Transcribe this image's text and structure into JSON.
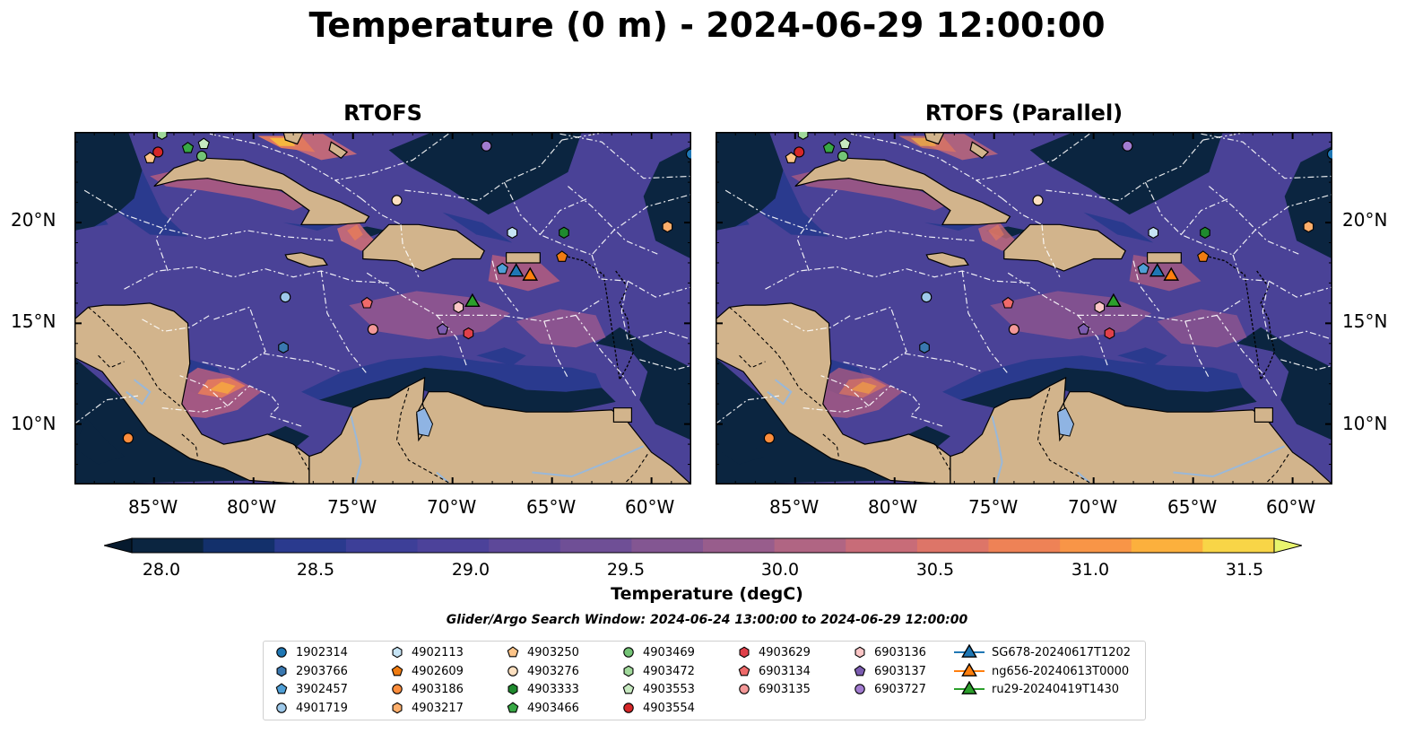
{
  "title": "Temperature (0 m) - 2024-06-29 12:00:00",
  "panels": [
    {
      "id": "rtofs",
      "title": "RTOFS"
    },
    {
      "id": "parallel",
      "title": "RTOFS (Parallel)"
    }
  ],
  "lon_ticks": [
    "85°W",
    "80°W",
    "75°W",
    "70°W",
    "65°W",
    "60°W"
  ],
  "lat_ticks": [
    "20°N",
    "15°N",
    "10°N"
  ],
  "map_extent": {
    "lon_min": -89,
    "lon_max": -58,
    "lat_min": 7,
    "lat_max": 24.5
  },
  "colorbar": {
    "label": "Temperature (degC)",
    "ticks": [
      "28.0",
      "28.5",
      "29.0",
      "29.5",
      "30.0",
      "30.5",
      "31.0",
      "31.5"
    ],
    "vmin": 28.0,
    "vmax": 31.5,
    "step": 0.25,
    "colors": [
      "#0b2540",
      "#13306b",
      "#2a3a8e",
      "#3d3f98",
      "#4c429a",
      "#5d4899",
      "#6f4f96",
      "#835692",
      "#985d8c",
      "#b06583",
      "#c86c78",
      "#dd7568",
      "#ee8256",
      "#f89547",
      "#fcb03d",
      "#f8d547"
    ],
    "under_color": "#061a2e",
    "over_color": "#e8f56e"
  },
  "search_window": "Glider/Argo Search Window: 2024-06-24 13:00:00 to 2024-06-29 12:00:00",
  "legend": [
    {
      "label": "1902314",
      "marker": "circle",
      "color": "#1f77b4"
    },
    {
      "label": "2903766",
      "marker": "hexagon",
      "color": "#3a78b0"
    },
    {
      "label": "3902457",
      "marker": "pentagon",
      "color": "#4f9fd6"
    },
    {
      "label": "4901719",
      "marker": "circle",
      "color": "#9ec9ea"
    },
    {
      "label": "4902113",
      "marker": "hexagon",
      "color": "#c6e4f5"
    },
    {
      "label": "4902609",
      "marker": "pentagon",
      "color": "#f07c12"
    },
    {
      "label": "4903186",
      "marker": "circle",
      "color": "#fd8d3c"
    },
    {
      "label": "4903217",
      "marker": "hexagon",
      "color": "#fdae6b"
    },
    {
      "label": "4903250",
      "marker": "pentagon",
      "color": "#fdc488"
    },
    {
      "label": "4903276",
      "marker": "circle",
      "color": "#fde0c0"
    },
    {
      "label": "4903333",
      "marker": "hexagon",
      "color": "#1f8a2e"
    },
    {
      "label": "4903466",
      "marker": "pentagon",
      "color": "#38a845"
    },
    {
      "label": "4903469",
      "marker": "circle",
      "color": "#74c476"
    },
    {
      "label": "4903472",
      "marker": "hexagon",
      "color": "#a1d99b"
    },
    {
      "label": "4903553",
      "marker": "pentagon",
      "color": "#c7e9c0"
    },
    {
      "label": "4903554",
      "marker": "circle",
      "color": "#d62728"
    },
    {
      "label": "4903629",
      "marker": "hexagon",
      "color": "#e0404a"
    },
    {
      "label": "6903134",
      "marker": "pentagon",
      "color": "#ef6a6a"
    },
    {
      "label": "6903135",
      "marker": "circle",
      "color": "#f49898"
    },
    {
      "label": "6903136",
      "marker": "hexagon",
      "color": "#fcc6c6"
    },
    {
      "label": "6903137",
      "marker": "pentagon",
      "color": "#7b5cb0"
    },
    {
      "label": "6903727",
      "marker": "circle",
      "color": "#a27cd0"
    },
    {
      "label": "SG678-20240617T1202",
      "marker": "triangle",
      "color": "#1f77b4"
    },
    {
      "label": "ng656-20240613T0000",
      "marker": "triangle",
      "color": "#ff7f0e"
    },
    {
      "label": "ru29-20240419T1430",
      "marker": "triangle",
      "color": "#2ca02c"
    }
  ],
  "observations": [
    {
      "id": "1902314",
      "lon": -58.0,
      "lat": 23.4
    },
    {
      "id": "2903766",
      "lon": -78.5,
      "lat": 13.8
    },
    {
      "id": "3902457",
      "lon": -67.5,
      "lat": 17.7
    },
    {
      "id": "4901719",
      "lon": -78.4,
      "lat": 16.3
    },
    {
      "id": "4902113",
      "lon": -67.0,
      "lat": 19.5
    },
    {
      "id": "4902609",
      "lon": -64.5,
      "lat": 18.3
    },
    {
      "id": "4903186",
      "lon": -86.3,
      "lat": 9.3
    },
    {
      "id": "4903217",
      "lon": -59.2,
      "lat": 19.8
    },
    {
      "id": "4903250",
      "lon": -85.2,
      "lat": 23.2
    },
    {
      "id": "4903276",
      "lon": -72.8,
      "lat": 21.1
    },
    {
      "id": "4903333",
      "lon": -64.4,
      "lat": 19.5
    },
    {
      "id": "4903466",
      "lon": -83.3,
      "lat": 23.7
    },
    {
      "id": "4903469",
      "lon": -82.6,
      "lat": 23.3
    },
    {
      "id": "4903472",
      "lon": -84.6,
      "lat": 24.4
    },
    {
      "id": "4903553",
      "lon": -82.5,
      "lat": 23.9
    },
    {
      "id": "4903554",
      "lon": -84.8,
      "lat": 23.5
    },
    {
      "id": "4903629",
      "lon": -69.2,
      "lat": 14.5
    },
    {
      "id": "6903134",
      "lon": -74.3,
      "lat": 16.0
    },
    {
      "id": "6903135",
      "lon": -74.0,
      "lat": 14.7
    },
    {
      "id": "6903136",
      "lon": -69.7,
      "lat": 15.8
    },
    {
      "id": "6903137",
      "lon": -70.5,
      "lat": 14.7
    },
    {
      "id": "6903727",
      "lon": -68.3,
      "lat": 23.8
    },
    {
      "id": "SG678-20240617T1202",
      "lon": -66.8,
      "lat": 17.6
    },
    {
      "id": "ng656-20240613T0000",
      "lon": -66.1,
      "lat": 17.4
    },
    {
      "id": "ru29-20240419T1430",
      "lon": -69.0,
      "lat": 16.1
    }
  ]
}
